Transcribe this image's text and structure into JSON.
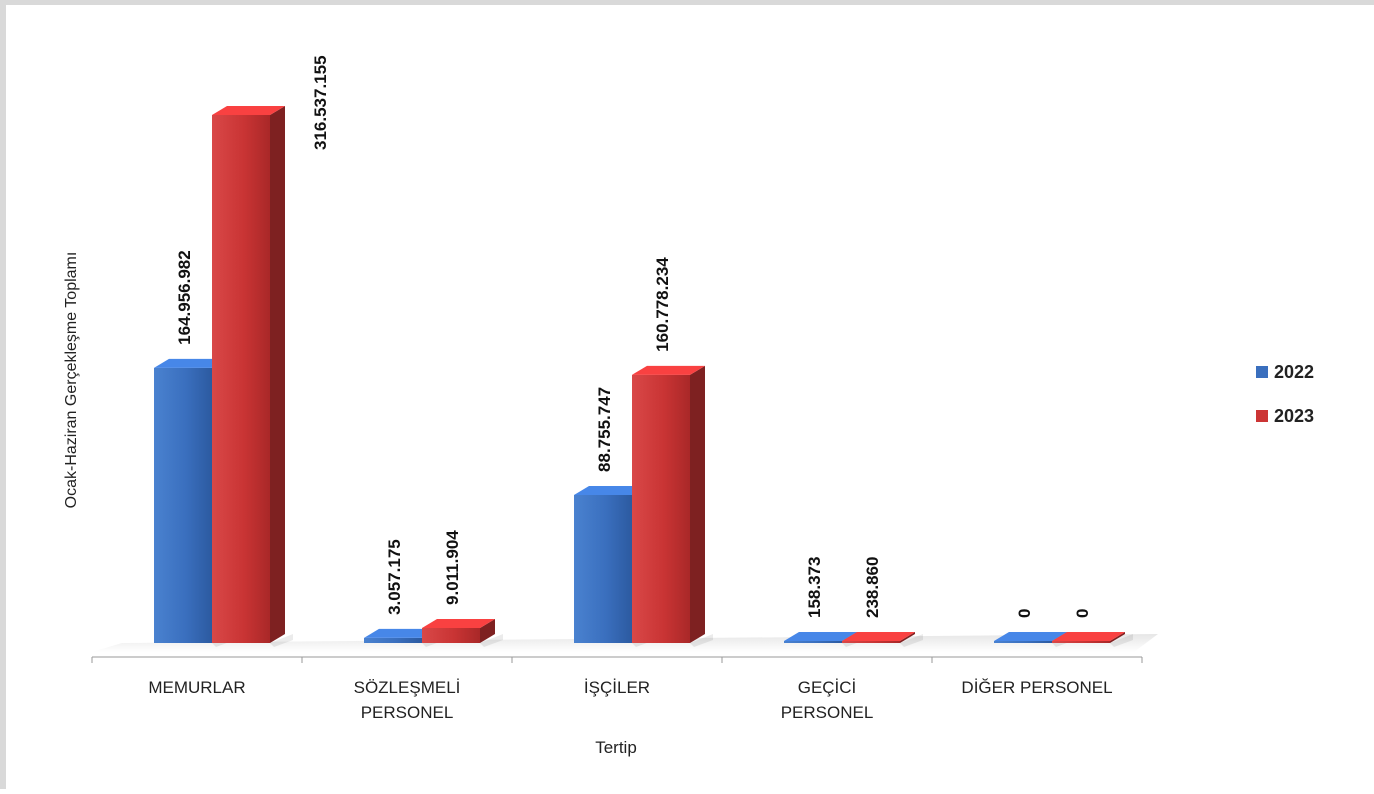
{
  "chart_data": {
    "type": "bar",
    "style": "3d-clustered-column",
    "xlabel": "Tertip",
    "ylabel": "Ocak-Haziran Gerçekleşme Toplamı",
    "categories": [
      [
        "MEMURLAR"
      ],
      [
        "SÖZLEŞMELİ",
        "PERSONEL"
      ],
      [
        "İŞÇİLER"
      ],
      [
        "GEÇİCİ",
        "PERSONEL"
      ],
      [
        "DİĞER PERSONEL"
      ]
    ],
    "series": [
      {
        "name": "2022",
        "color": "#3a6fbe",
        "values": [
          164956982,
          3057175,
          88755747,
          158373,
          0
        ],
        "labels": [
          "164.956.982",
          "3.057.175",
          "88.755.747",
          "158.373",
          "0"
        ]
      },
      {
        "name": "2023",
        "color": "#cc3535",
        "values": [
          316537155,
          9011904,
          160778234,
          238860,
          0
        ],
        "labels": [
          "316.537.155",
          "9.011.904",
          "160.778.234",
          "238.860",
          "0"
        ]
      }
    ],
    "legend_position": "right",
    "grid": false
  }
}
